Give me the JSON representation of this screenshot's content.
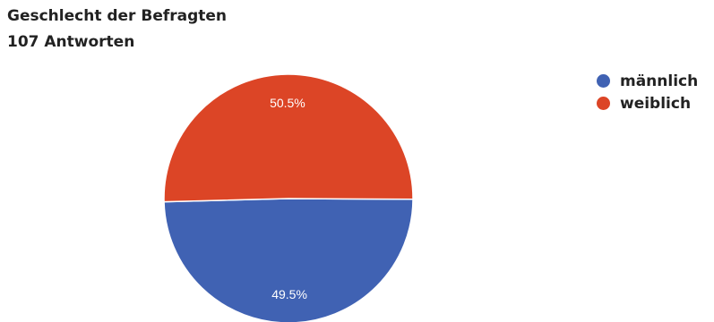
{
  "title": "Geschlecht der Befragten",
  "subtitle": "107 Antworten",
  "chart_data": {
    "type": "pie",
    "title": "Geschlecht der Befragten",
    "subtitle": "107 Antworten",
    "legend_position": "right",
    "slices": [
      {
        "name": "männlich",
        "value": 49.5,
        "label": "49.5%",
        "color": "#4062b3"
      },
      {
        "name": "weiblich",
        "value": 50.5,
        "label": "50.5%",
        "color": "#dc4526"
      }
    ]
  }
}
